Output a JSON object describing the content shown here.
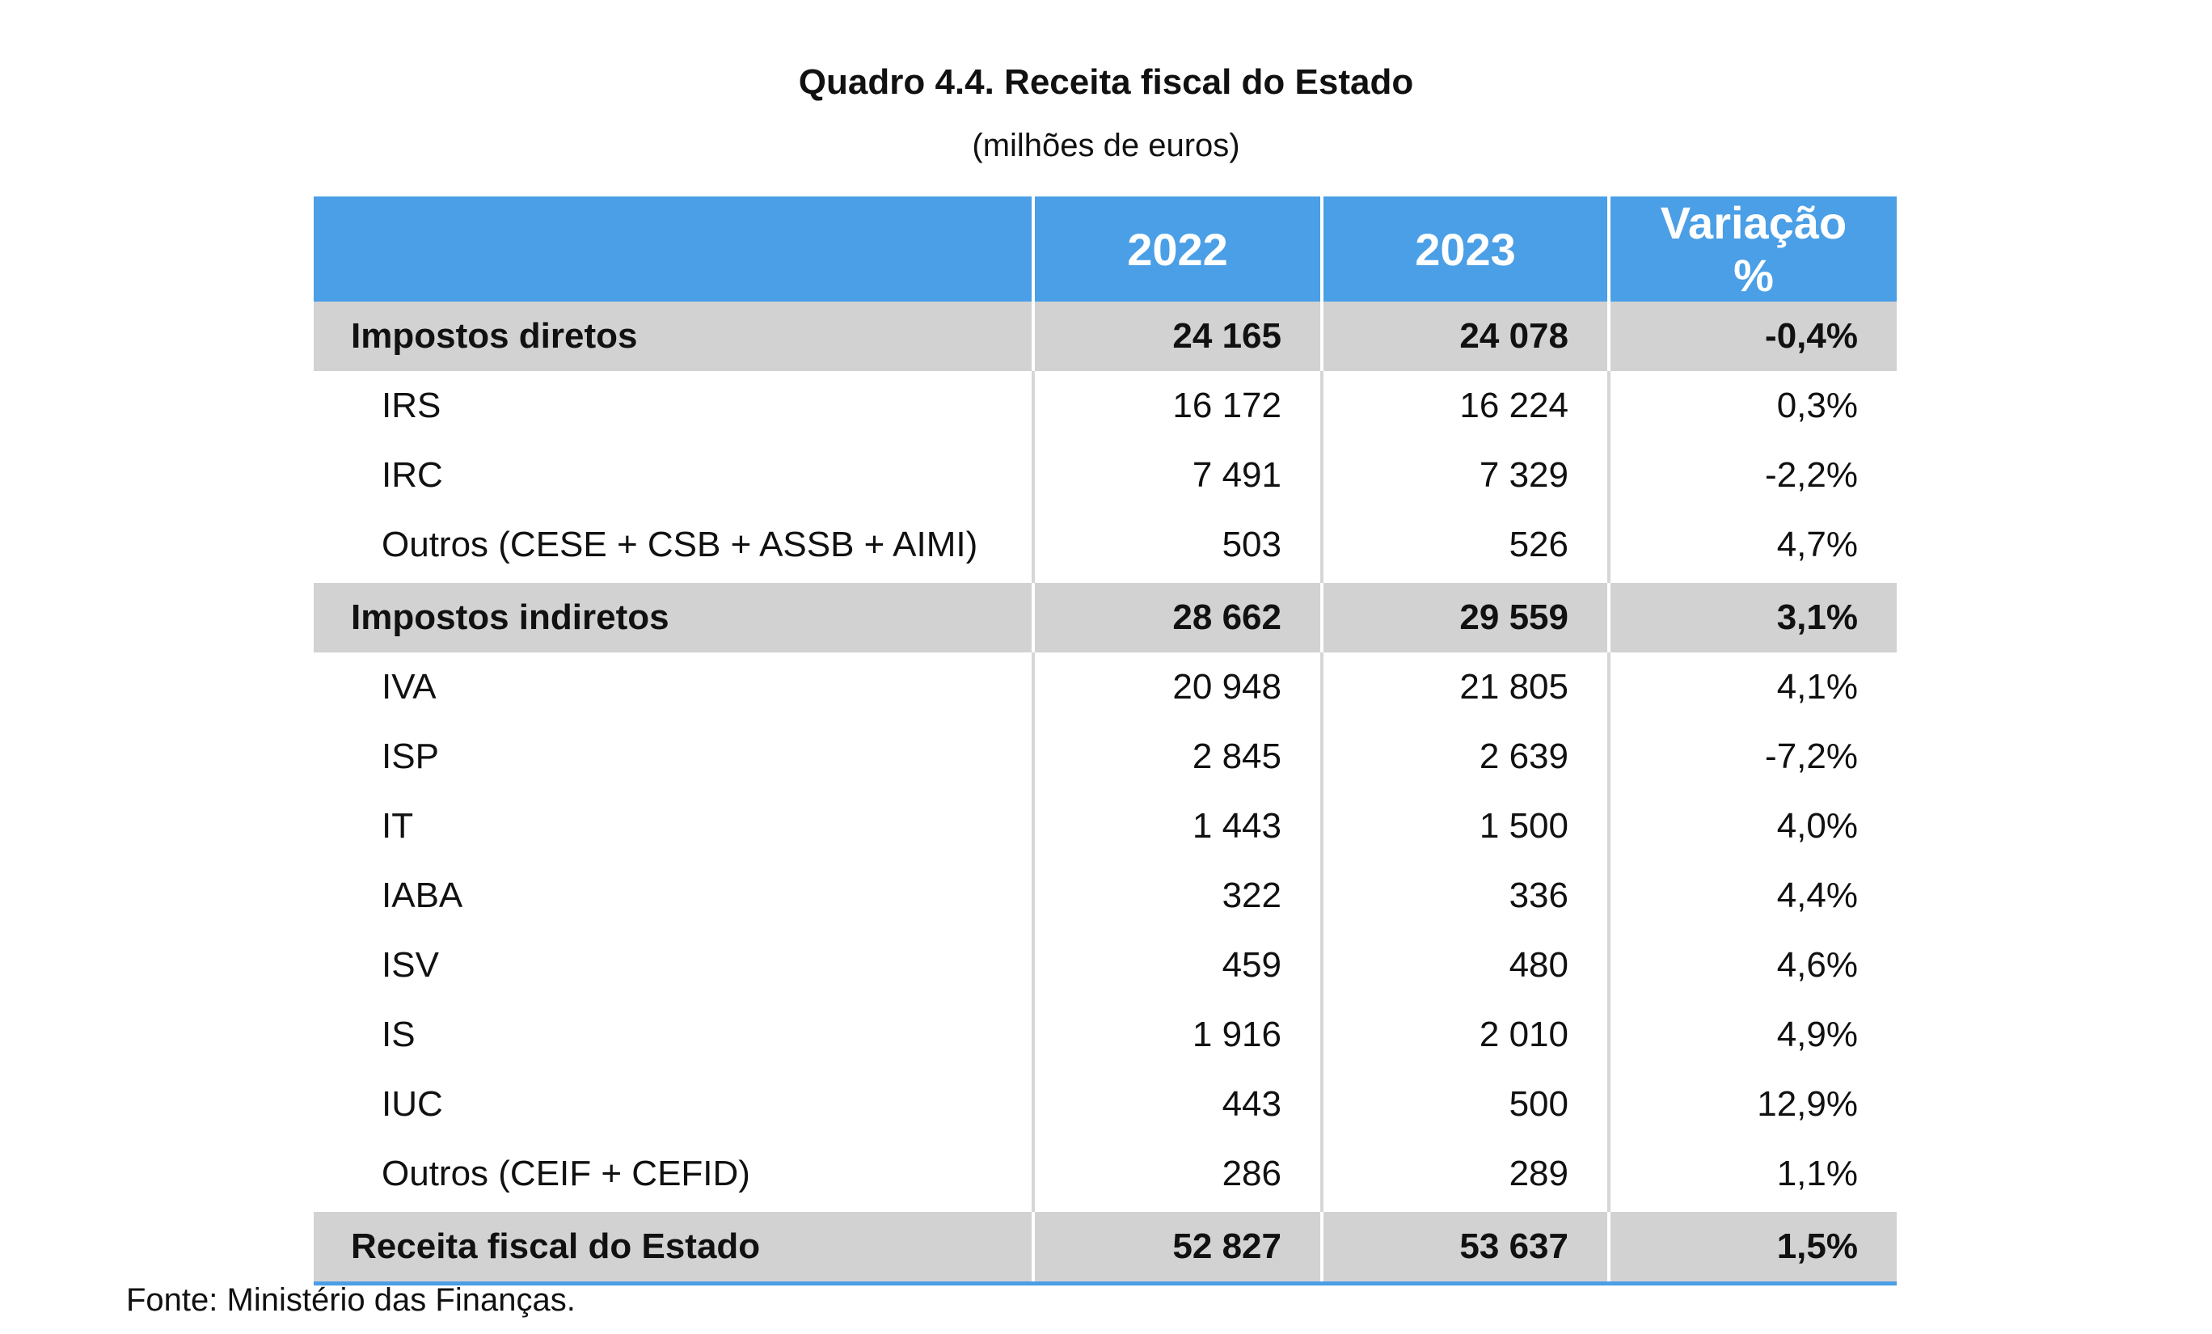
{
  "title": "Quadro 4.4. Receita fiscal do Estado",
  "subtitle": "(milhões de euros)",
  "table": {
    "headers": [
      "",
      "2022",
      "2023",
      "Variação %"
    ],
    "rows": [
      {
        "label": "Impostos diretos",
        "v2022": "24 165",
        "v2023": "24 078",
        "variation": "-0,4%",
        "type": "group"
      },
      {
        "label": "IRS",
        "v2022": "16 172",
        "v2023": "16 224",
        "variation": "0,3%",
        "type": "item"
      },
      {
        "label": "IRC",
        "v2022": "7 491",
        "v2023": "7 329",
        "variation": "-2,2%",
        "type": "item"
      },
      {
        "label": "Outros (CESE + CSB + ASSB + AIMI)",
        "v2022": "503",
        "v2023": "526",
        "variation": "4,7%",
        "type": "item"
      },
      {
        "label": "Impostos indiretos",
        "v2022": "28 662",
        "v2023": "29 559",
        "variation": "3,1%",
        "type": "group"
      },
      {
        "label": "IVA",
        "v2022": "20 948",
        "v2023": "21 805",
        "variation": "4,1%",
        "type": "item"
      },
      {
        "label": "ISP",
        "v2022": "2 845",
        "v2023": "2 639",
        "variation": "-7,2%",
        "type": "item"
      },
      {
        "label": "IT",
        "v2022": "1 443",
        "v2023": "1 500",
        "variation": "4,0%",
        "type": "item"
      },
      {
        "label": "IABA",
        "v2022": "322",
        "v2023": "336",
        "variation": "4,4%",
        "type": "item"
      },
      {
        "label": "ISV",
        "v2022": "459",
        "v2023": "480",
        "variation": "4,6%",
        "type": "item"
      },
      {
        "label": "IS",
        "v2022": "1 916",
        "v2023": "2 010",
        "variation": "4,9%",
        "type": "item"
      },
      {
        "label": "IUC",
        "v2022": "443",
        "v2023": "500",
        "variation": "12,9%",
        "type": "item"
      },
      {
        "label": "Outros (CEIF + CEFID)",
        "v2022": "286",
        "v2023": "289",
        "variation": "1,1%",
        "type": "item"
      },
      {
        "label": "Receita fiscal do Estado",
        "v2022": "52 827",
        "v2023": "53 637",
        "variation": "1,5%",
        "type": "total"
      }
    ]
  },
  "source": "Fonte: Ministério das Finanças.",
  "colors": {
    "header_bg": "#4a9fe6",
    "group_bg": "#d2d2d2",
    "divider": "#d6d6d6"
  }
}
